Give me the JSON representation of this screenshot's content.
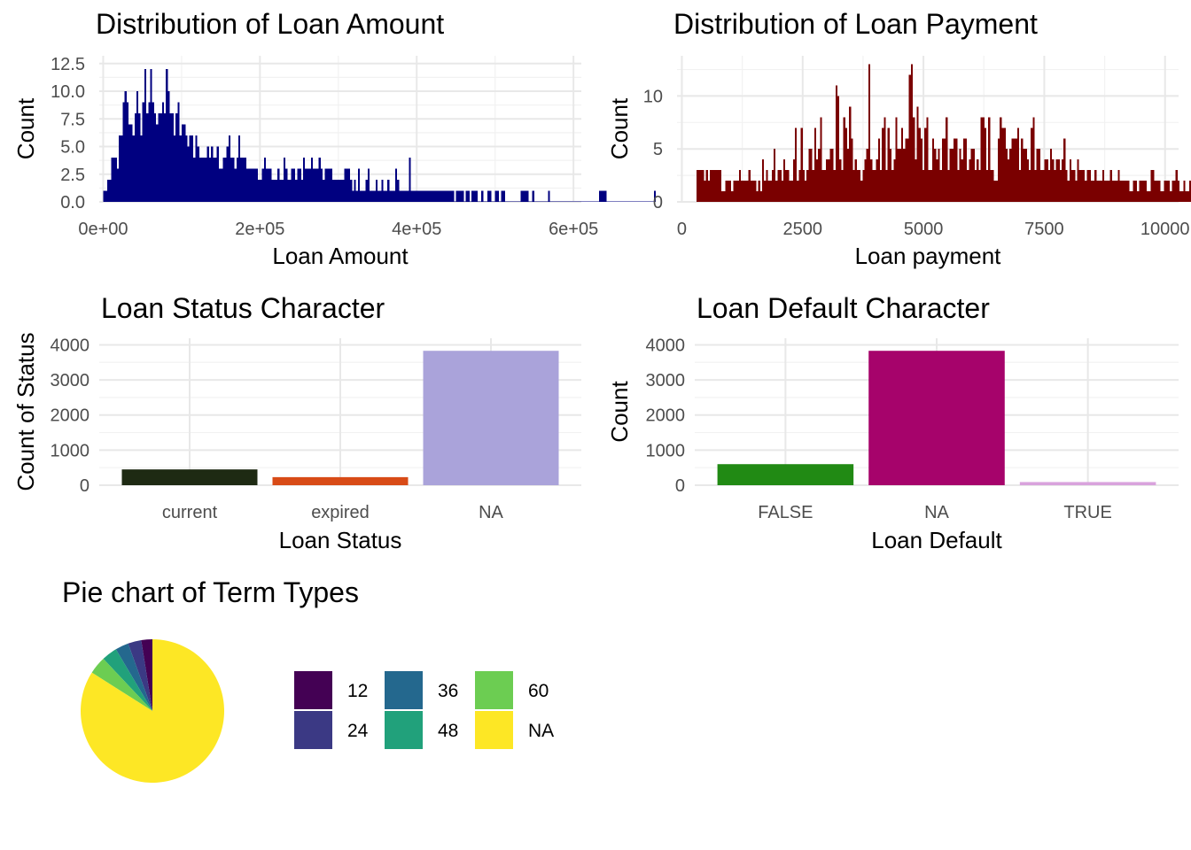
{
  "chart_data": [
    {
      "id": "loan-amount",
      "type": "bar",
      "subtype": "histogram",
      "title": "Distribution of Loan Amount",
      "xlabel": "Loan Amount",
      "ylabel": "Count",
      "fill": "#000080",
      "xlim": [
        -5000,
        610000
      ],
      "ylim": [
        0,
        13.2
      ],
      "x_ticks": [
        0,
        200000,
        400000,
        600000
      ],
      "x_tick_labels": [
        "0e+00",
        "2e+05",
        "4e+05",
        "6e+05"
      ],
      "y_ticks": [
        0,
        2.5,
        5,
        7.5,
        10,
        12.5
      ],
      "y_tick_labels": [
        "0.0",
        "2.5",
        "5.0",
        "7.5",
        "10.0",
        "12.5"
      ],
      "bin_width": 2500,
      "bin_start": 0,
      "counts": [
        1,
        1,
        2,
        2,
        4,
        4,
        4,
        3,
        6,
        6,
        9,
        10,
        9,
        7,
        7,
        6,
        8,
        10,
        8,
        6,
        9,
        12,
        8,
        9,
        12,
        9,
        8,
        7,
        8,
        8,
        9,
        8,
        12,
        10,
        8,
        8,
        6,
        8,
        9,
        6,
        7,
        7,
        6,
        5,
        6,
        6,
        4,
        6,
        5,
        4,
        4,
        4,
        4,
        5,
        4,
        5,
        4,
        4,
        5,
        3,
        3,
        4,
        4,
        5,
        6,
        4,
        4,
        3,
        4,
        6,
        4,
        4,
        4,
        3,
        3,
        3,
        3,
        3,
        3,
        2,
        2,
        3,
        4,
        3,
        3,
        3,
        2,
        2,
        2,
        3,
        2,
        2,
        4,
        3,
        2,
        2,
        3,
        3,
        2,
        3,
        3,
        2,
        4,
        3,
        3,
        3,
        4,
        3,
        3,
        3,
        4,
        3,
        2,
        3,
        3,
        3,
        3,
        2,
        2,
        2,
        2,
        2,
        2,
        3,
        3,
        3,
        2,
        1,
        2,
        1,
        3,
        1,
        1,
        1,
        2,
        3,
        1,
        1,
        1,
        2,
        1,
        1,
        2,
        1,
        1,
        2,
        1,
        1,
        1,
        3,
        2,
        1,
        1,
        1,
        1,
        1,
        4,
        1,
        1,
        1,
        1,
        1,
        1,
        1,
        1,
        1,
        1,
        1,
        1,
        1,
        1,
        1,
        1,
        1,
        1,
        1,
        1,
        1,
        1,
        0,
        1,
        1,
        1,
        1,
        0,
        1,
        1,
        0,
        1,
        1,
        1,
        0,
        0,
        1,
        0,
        0,
        1,
        1,
        0,
        0,
        1,
        1,
        0,
        1,
        1,
        0,
        0,
        0,
        0,
        0,
        0,
        0,
        0,
        1,
        1,
        1,
        1,
        0,
        0,
        1,
        0,
        0,
        0,
        0,
        0,
        0,
        0,
        1,
        0,
        0,
        0,
        0,
        0,
        0,
        0,
        0,
        0,
        0,
        0,
        0,
        0,
        0,
        0,
        0,
        0,
        0,
        0,
        0,
        0,
        0,
        0,
        0,
        0,
        1,
        1,
        1,
        1,
        0,
        0,
        0,
        0,
        0,
        0,
        0,
        0,
        0,
        0,
        0,
        0,
        0,
        0,
        0,
        0,
        0,
        0,
        0,
        0,
        0,
        0,
        0,
        0,
        1
      ]
    },
    {
      "id": "loan-payment",
      "type": "bar",
      "subtype": "histogram",
      "title": "Distribution of Loan Payment",
      "xlabel": "Loan payment",
      "ylabel": "Count",
      "fill": "#7a0000",
      "xlim": [
        -100,
        10280
      ],
      "ylim": [
        0,
        13.8
      ],
      "x_ticks": [
        0,
        2500,
        5000,
        7500,
        10000
      ],
      "x_tick_labels": [
        "0",
        "2500",
        "5000",
        "7500",
        "10000"
      ],
      "y_ticks": [
        0,
        5,
        10
      ],
      "y_tick_labels": [
        "0",
        "5",
        "10"
      ],
      "bin_width": 40,
      "bin_start": 300,
      "counts": [
        3,
        3,
        3,
        3,
        2,
        3,
        2,
        3,
        3,
        3,
        3,
        3,
        3,
        1,
        1,
        2,
        2,
        2,
        1,
        2,
        2,
        2,
        3,
        2,
        2,
        2,
        2,
        3,
        2,
        2,
        2,
        1,
        2,
        1,
        4,
        2,
        3,
        2,
        2,
        3,
        5,
        2,
        3,
        3,
        2,
        4,
        3,
        3,
        2,
        2,
        4,
        7,
        2,
        3,
        7,
        3,
        2,
        3,
        5,
        5,
        3,
        7,
        4,
        5,
        8,
        3,
        3,
        4,
        4,
        5,
        5,
        3,
        11,
        10,
        4,
        3,
        8,
        7,
        5,
        9,
        6,
        3,
        4,
        3,
        3,
        2,
        3,
        4,
        5,
        13,
        4,
        3,
        3,
        4,
        6,
        3,
        7,
        8,
        3,
        7,
        5,
        3,
        4,
        8,
        5,
        5,
        7,
        5,
        6,
        6,
        12,
        13,
        8,
        4,
        9,
        7,
        6,
        3,
        7,
        8,
        3,
        3,
        6,
        5,
        4,
        5,
        3,
        6,
        6,
        8,
        3,
        5,
        5,
        6,
        6,
        3,
        5,
        4,
        6,
        6,
        3,
        4,
        5,
        5,
        3,
        4,
        3,
        8,
        8,
        7,
        3,
        8,
        3,
        3,
        2,
        2,
        6,
        8,
        7,
        7,
        5,
        4,
        5,
        6,
        6,
        6,
        7,
        3,
        6,
        5,
        5,
        4,
        3,
        7,
        8,
        3,
        5,
        5,
        3,
        3,
        4,
        4,
        3,
        5,
        4,
        3,
        4,
        4,
        3,
        4,
        6,
        3,
        2,
        4,
        3,
        3,
        2,
        4,
        3,
        3,
        3,
        2,
        3,
        3,
        2,
        2,
        3,
        2,
        2,
        2,
        3,
        2,
        2,
        2,
        3,
        2,
        2,
        2,
        3,
        2,
        2,
        2,
        2,
        2,
        1,
        1,
        2,
        2,
        1,
        2,
        2,
        2,
        2,
        1,
        1,
        3,
        3,
        2,
        2,
        2,
        1,
        1,
        2,
        2,
        2,
        1,
        2,
        2,
        3,
        2,
        1,
        1,
        2,
        1,
        1,
        2,
        3,
        2,
        2,
        2,
        1,
        1,
        1,
        2,
        2,
        1,
        1,
        1,
        1,
        1,
        1,
        1,
        2,
        1,
        1,
        1,
        1,
        2,
        1,
        2,
        1,
        1,
        1,
        1,
        1,
        1,
        1,
        1,
        1,
        2,
        1,
        1,
        1,
        1,
        1,
        1,
        1,
        1,
        1,
        1,
        1,
        1,
        1,
        1,
        1,
        1,
        1,
        1,
        1,
        1,
        1,
        1,
        1,
        1,
        1,
        1,
        1,
        1,
        1,
        1,
        1,
        1,
        1,
        1,
        1,
        1,
        1,
        1,
        1,
        1,
        1,
        1,
        1,
        1,
        1,
        1,
        1,
        1,
        1,
        1,
        1,
        1,
        1,
        1,
        1
      ]
    },
    {
      "id": "loan-status",
      "type": "bar",
      "title": "Loan Status Character",
      "xlabel": "Loan Status",
      "ylabel": "Count of Status",
      "categories": [
        "current",
        "expired",
        "NA"
      ],
      "values": [
        450,
        230,
        3830
      ],
      "colors": [
        "#1e2a13",
        "#d84b17",
        "#aaa3da"
      ],
      "ylim": [
        0,
        4000
      ],
      "y_ticks": [
        0,
        1000,
        2000,
        3000,
        4000
      ],
      "y_tick_labels": [
        "0",
        "1000",
        "2000",
        "3000",
        "4000"
      ]
    },
    {
      "id": "loan-default",
      "type": "bar",
      "title": "Loan Default Character",
      "xlabel": "Loan Default",
      "ylabel": "Count",
      "categories": [
        "FALSE",
        "NA",
        "TRUE"
      ],
      "values": [
        600,
        3830,
        90
      ],
      "colors": [
        "#218a14",
        "#a6036b",
        "#d9a3dd"
      ],
      "ylim": [
        0,
        4000
      ],
      "y_ticks": [
        0,
        1000,
        2000,
        3000,
        4000
      ],
      "y_tick_labels": [
        "0",
        "1000",
        "2000",
        "3000",
        "4000"
      ]
    },
    {
      "id": "term-types",
      "type": "pie",
      "title": "Pie chart of Term Types",
      "categories": [
        "12",
        "24",
        "36",
        "48",
        "60",
        "NA"
      ],
      "values": [
        2.5,
        3,
        3,
        3.5,
        4,
        84
      ],
      "colors": [
        "#440154",
        "#3b3984",
        "#24688e",
        "#21a17b",
        "#6ccd52",
        "#fde725"
      ],
      "legend_position": "right"
    }
  ]
}
